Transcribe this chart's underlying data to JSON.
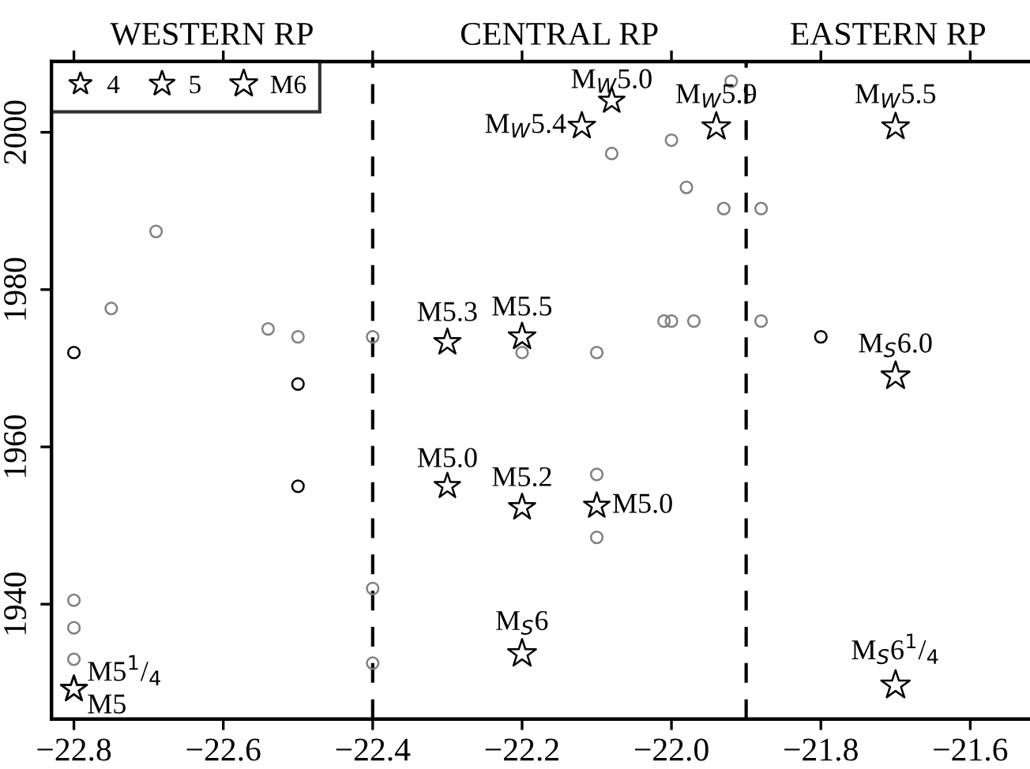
{
  "chart_data": {
    "type": "bubble",
    "xlim": [
      -22.83,
      -21.52
    ],
    "ylim": [
      1925.4,
      2009
    ],
    "xticks": [
      {
        "value": -22.8,
        "label": "−22.8"
      },
      {
        "value": -22.6,
        "label": "−22.6"
      },
      {
        "value": -22.4,
        "label": "−22.4"
      },
      {
        "value": -22.2,
        "label": "−22.2"
      },
      {
        "value": -22.0,
        "label": "−22.0"
      },
      {
        "value": -21.8,
        "label": "−21.8"
      },
      {
        "value": -21.6,
        "label": "−21.6"
      }
    ],
    "yticks": [
      1940,
      1960,
      1980,
      2000
    ],
    "grid": false,
    "size_legend": [
      4,
      5,
      {
        "value": 6,
        "label": "M6"
      }
    ],
    "series": [
      {
        "type": "scatter",
        "marker": "circle",
        "color": "#808080",
        "x": [
          -22.69,
          -22.75,
          -22.54,
          -22.5,
          -22.4,
          -21.92,
          -22.0,
          -22.08,
          -21.98,
          -21.93,
          -21.88,
          -22.01,
          -22.0,
          -21.97,
          -21.88,
          -22.1,
          -22.2,
          -22.8,
          -22.8,
          -22.8,
          -22.4,
          -22.4,
          -22.1,
          -22.1
        ],
        "values": [
          1987.4,
          1977.6,
          1975,
          1974,
          1974,
          2006.5,
          1999,
          1997.3,
          1993,
          1990.3,
          1990.3,
          1976,
          1976,
          1976,
          1976,
          1972,
          1972,
          1940.5,
          1937,
          1933,
          1942,
          1932.5,
          1956.5,
          1948.5
        ]
      },
      {
        "type": "scatter",
        "marker": "circle",
        "color": "#000000",
        "x": [
          -22.8,
          -22.5,
          -22.5,
          -21.8
        ],
        "values": [
          1972,
          1968,
          1955,
          1974
        ]
      },
      {
        "type": "bubble",
        "marker": "star",
        "color": "#000000",
        "x": [
          -22.3,
          -22.2,
          -22.08,
          -22.12,
          -21.94,
          -21.7,
          -21.7,
          -22.3,
          -22.2,
          -22.1,
          -22.2,
          -21.7,
          -22.8,
          -22.8
        ],
        "values": [
          1973.3,
          1974,
          2004,
          2000.8,
          2000.7,
          2000.7,
          1969,
          1955,
          1952.3,
          1952.5,
          1933.7,
          1929.7,
          1929.2,
          1929.2
        ],
        "sizes": [
          5.3,
          5.5,
          5.0,
          5.4,
          5.9,
          5.5,
          6.0,
          5.0,
          5.2,
          5.0,
          6.0,
          6.25,
          5.25,
          5.0
        ]
      }
    ],
    "ref_lines": [
      {
        "axis": "x",
        "value": -22.4,
        "line_style": "dashed",
        "color": "#000000"
      },
      {
        "axis": "x",
        "value": -21.9,
        "line_style": "dashed",
        "color": "#000000"
      }
    ],
    "annotations": [
      "WESTERN RP",
      "CENTRAL RP",
      "EASTERN RP",
      {
        "text": "M5.3",
        "x": -22.3,
        "y": 1973.3
      },
      {
        "text": "M5.5",
        "x": -22.2,
        "y": 1974
      },
      {
        "text": "M$_{W}$5.0",
        "x": -22.08,
        "y": 2004
      },
      {
        "text": "M$_{W}$5.4",
        "x": -22.12,
        "y": 2000.8
      },
      {
        "text": "M$_{W}$5.9",
        "x": -21.94,
        "y": 2000.7
      },
      {
        "text": "M$_{W}$5.5",
        "x": -21.7,
        "y": 2000.7
      },
      {
        "text": "M$_{S}$6.0",
        "x": -21.7,
        "y": 1969
      },
      {
        "text": "M5.0",
        "x": -22.3,
        "y": 1955
      },
      {
        "text": "M5.2",
        "x": -22.2,
        "y": 1952.3
      },
      {
        "text": "M5.0",
        "x": -22.1,
        "y": 1952.5
      },
      {
        "text": "M$_{S}$6",
        "x": -22.2,
        "y": 1933.7
      },
      {
        "text": "M$_{S}$6$^{1}$/$_{4}$",
        "x": -21.7,
        "y": 1929.7
      },
      {
        "text": "M5$^{1}$/$_{4}$",
        "x": -22.8,
        "y": 1929.2
      },
      {
        "text": "M5",
        "x": -22.8,
        "y": 1929.2
      }
    ]
  }
}
